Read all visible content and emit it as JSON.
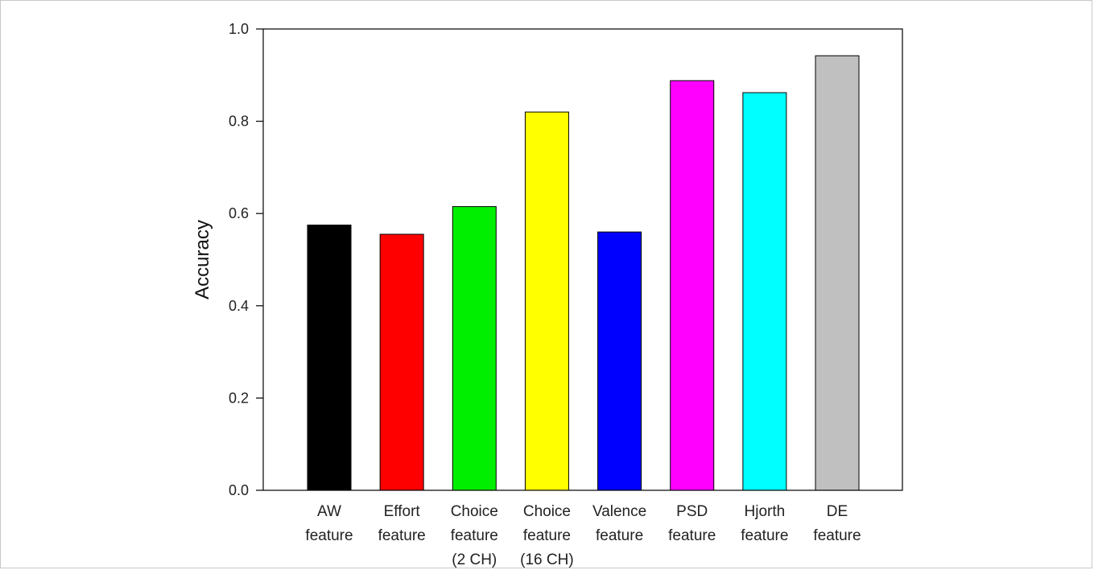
{
  "chart_data": {
    "type": "bar",
    "title": "",
    "xlabel": "",
    "ylabel": "Accuracy",
    "ylim": [
      0,
      1.0
    ],
    "yticks": [
      "0.0",
      "0.2",
      "0.4",
      "0.6",
      "0.8",
      "1.0"
    ],
    "grid": false,
    "categories": [
      [
        "AW",
        "feature"
      ],
      [
        "Effort",
        "feature"
      ],
      [
        "Choice",
        "feature",
        "(2 CH)"
      ],
      [
        "Choice",
        "feature",
        "(16 CH)"
      ],
      [
        "Valence",
        "feature"
      ],
      [
        "PSD",
        "feature"
      ],
      [
        "Hjorth",
        "feature"
      ],
      [
        "DE",
        "feature"
      ]
    ],
    "values": [
      0.575,
      0.555,
      0.615,
      0.82,
      0.56,
      0.888,
      0.862,
      0.942
    ],
    "colors": [
      "#000000",
      "#ff0000",
      "#00ee00",
      "#ffff00",
      "#0000ff",
      "#ff00ff",
      "#00ffff",
      "#c0c0c0"
    ]
  }
}
